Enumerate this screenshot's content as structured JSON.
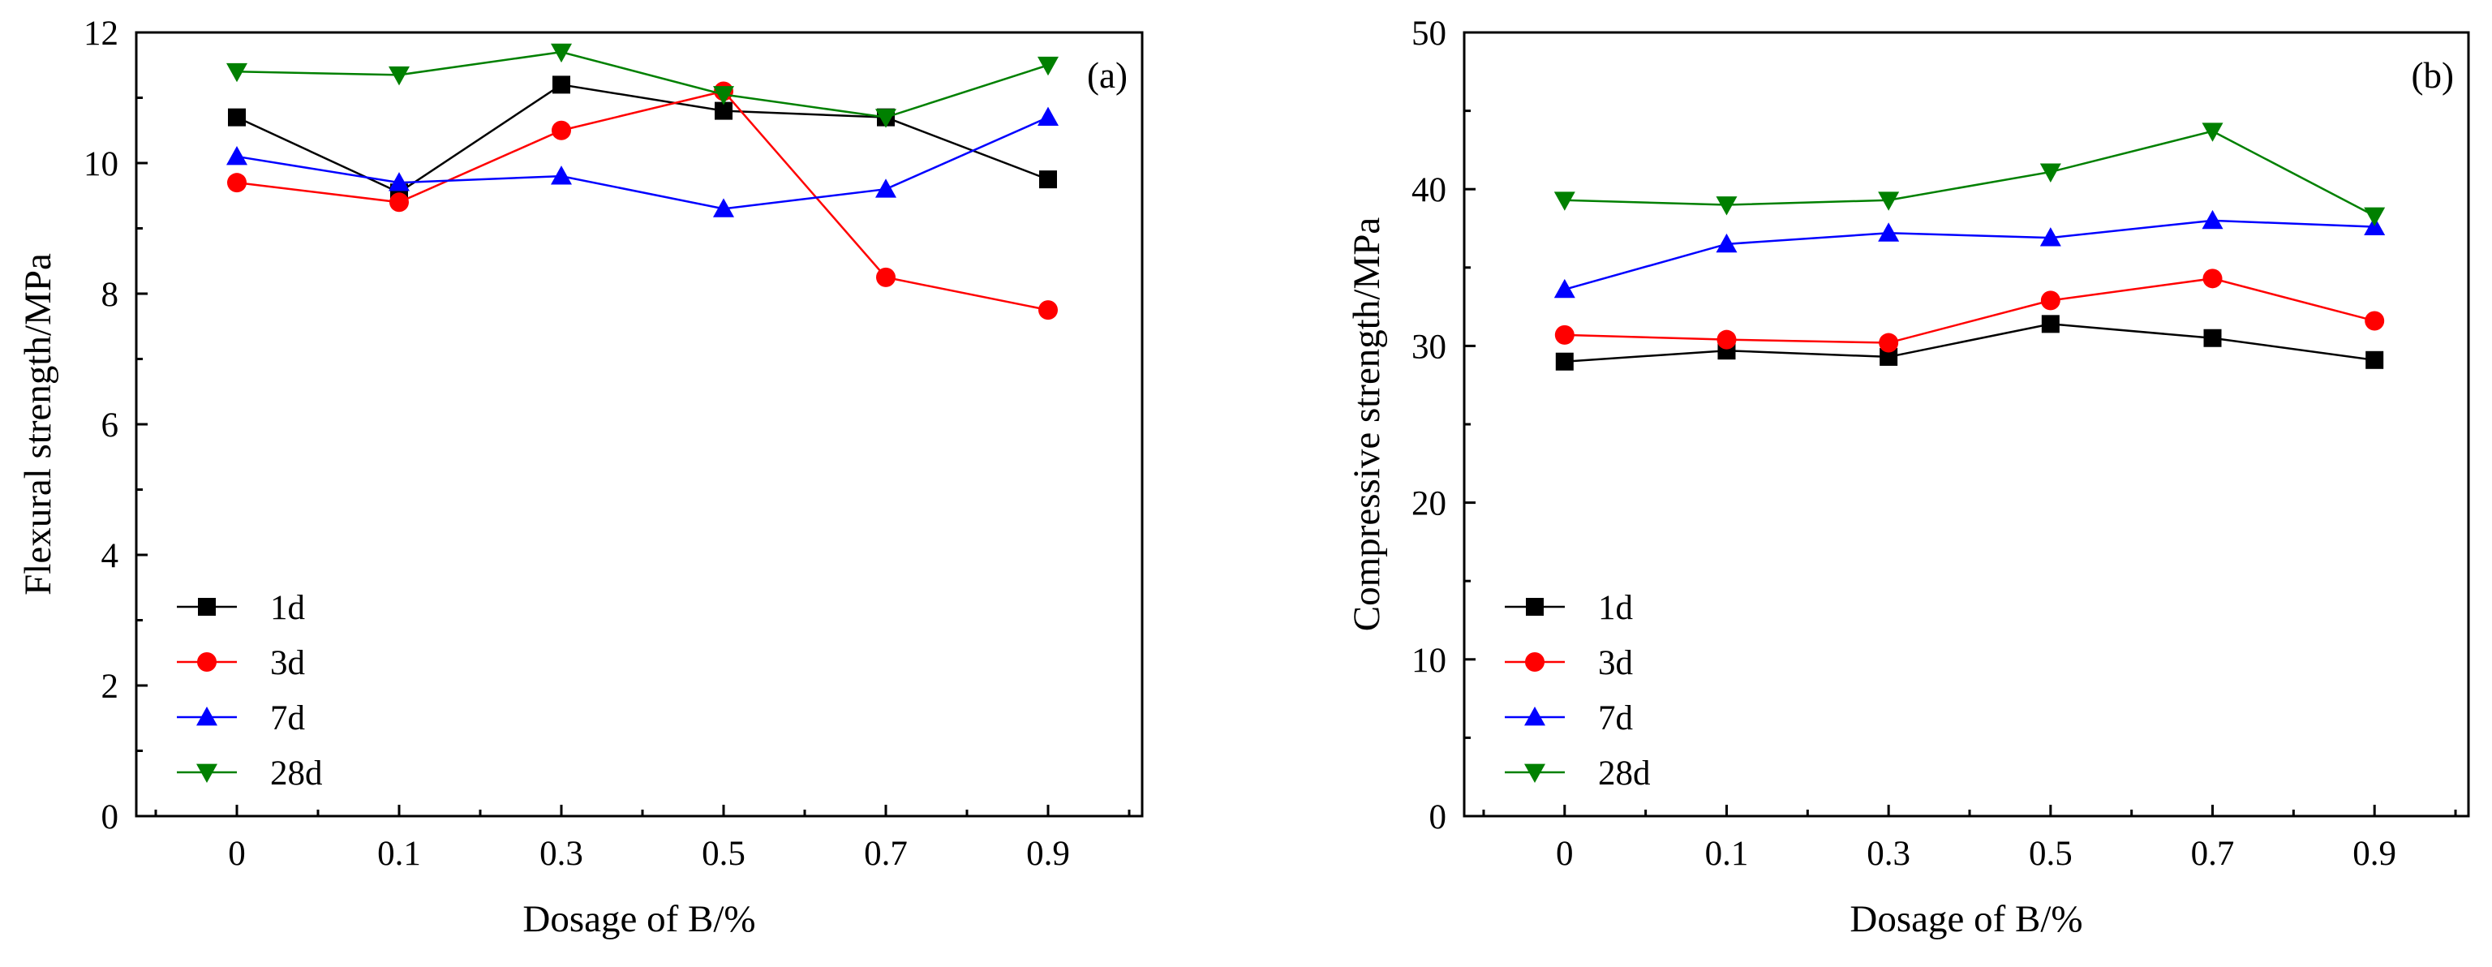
{
  "chart_data": [
    {
      "type": "line",
      "panel_label": "(a)",
      "xlabel": "Dosage of B/%",
      "ylabel": "Flexural strength/MPa",
      "categories": [
        "0",
        "0.1",
        "0.3",
        "0.5",
        "0.7",
        "0.9"
      ],
      "ylim": [
        0,
        12
      ],
      "yticks": [
        "0",
        "2",
        "4",
        "6",
        "8",
        "10",
        "12"
      ],
      "legend_position": "bottom-left",
      "series": [
        {
          "name": "1d",
          "color": "#000000",
          "marker": "square",
          "values": [
            10.7,
            9.55,
            11.2,
            10.8,
            10.7,
            9.75
          ]
        },
        {
          "name": "3d",
          "color": "#ff0000",
          "marker": "circle",
          "values": [
            9.7,
            9.4,
            10.5,
            11.1,
            8.25,
            7.75
          ]
        },
        {
          "name": "7d",
          "color": "#0000ff",
          "marker": "triangle-up",
          "values": [
            10.1,
            9.7,
            9.8,
            9.3,
            9.6,
            10.7
          ]
        },
        {
          "name": "28d",
          "color": "#008000",
          "marker": "triangle-down",
          "values": [
            11.4,
            11.35,
            11.7,
            11.05,
            10.7,
            11.5
          ]
        }
      ]
    },
    {
      "type": "line",
      "panel_label": "(b)",
      "xlabel": "Dosage of B/%",
      "ylabel": "Compressive strength/MPa",
      "categories": [
        "0",
        "0.1",
        "0.3",
        "0.5",
        "0.7",
        "0.9"
      ],
      "ylim": [
        0,
        50
      ],
      "yticks": [
        "0",
        "10",
        "20",
        "30",
        "40",
        "50"
      ],
      "legend_position": "bottom-left",
      "series": [
        {
          "name": "1d",
          "color": "#000000",
          "marker": "square",
          "values": [
            29.0,
            29.7,
            29.3,
            31.4,
            30.5,
            29.1
          ]
        },
        {
          "name": "3d",
          "color": "#ff0000",
          "marker": "circle",
          "values": [
            30.7,
            30.4,
            30.2,
            32.9,
            34.3,
            31.6
          ]
        },
        {
          "name": "7d",
          "color": "#0000ff",
          "marker": "triangle-up",
          "values": [
            33.6,
            36.5,
            37.2,
            36.9,
            38.0,
            37.6
          ]
        },
        {
          "name": "28d",
          "color": "#008000",
          "marker": "triangle-down",
          "values": [
            39.3,
            39.0,
            39.3,
            41.1,
            43.7,
            38.3
          ]
        }
      ]
    }
  ]
}
